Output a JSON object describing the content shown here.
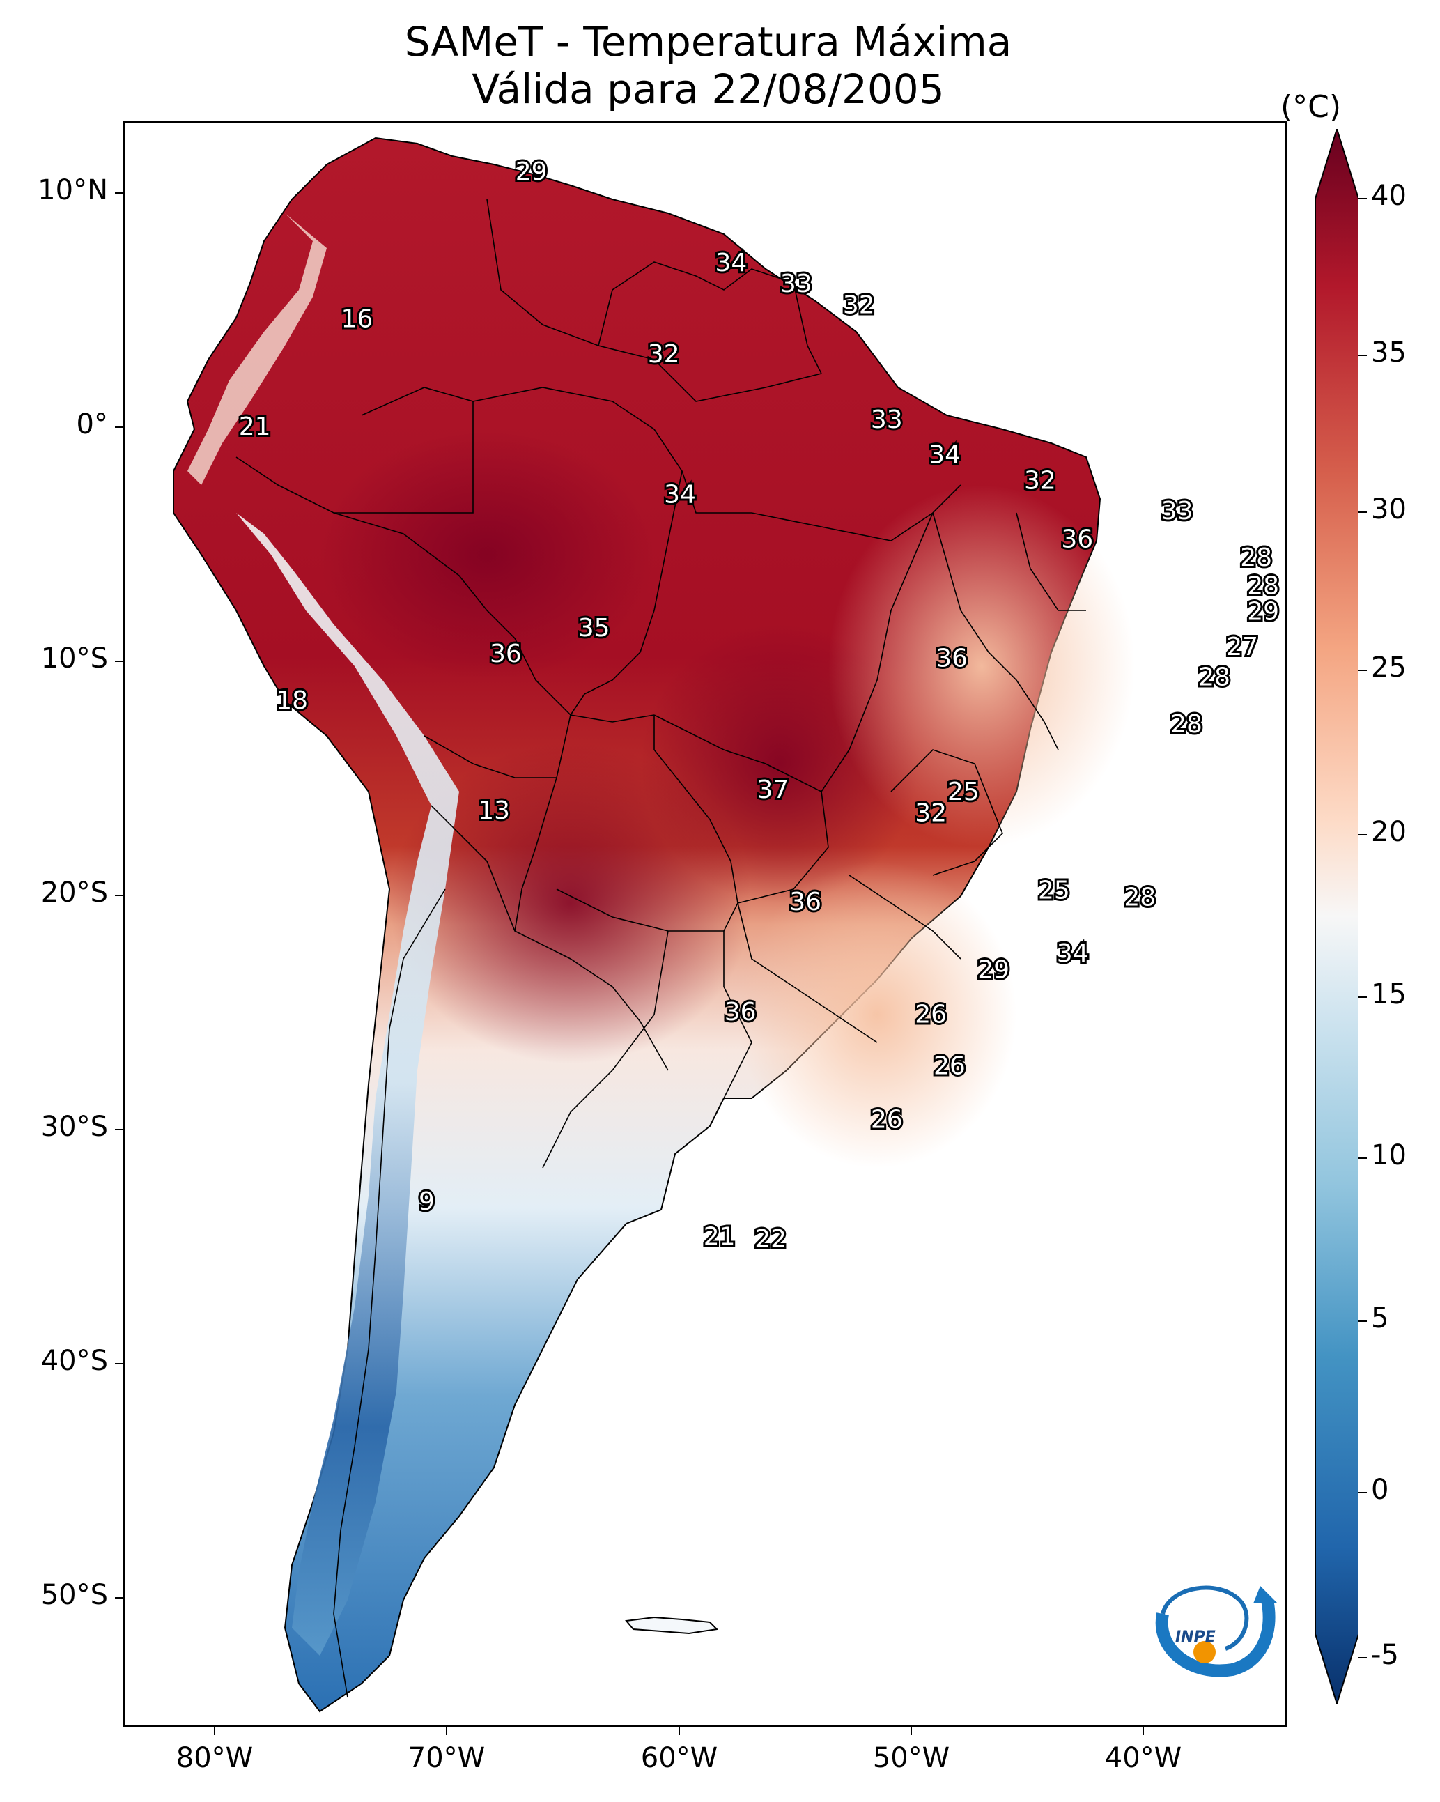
{
  "title": {
    "line1": "SAMeT - Temperatura Máxima",
    "line2": "Válida para 22/08/2005"
  },
  "colorbar": {
    "unit": "(°C)",
    "range": [
      -5,
      40
    ],
    "ticks": [
      "40",
      "35",
      "30",
      "25",
      "20",
      "15",
      "10",
      "5",
      "0",
      "-5"
    ],
    "colors": [
      "#08306b",
      "#2166ac",
      "#4393c3",
      "#92c5de",
      "#d1e5f0",
      "#f7f7f7",
      "#fddbc7",
      "#f4a582",
      "#d6604d",
      "#b2182b",
      "#67001f"
    ]
  },
  "axes": {
    "lat_labels": [
      "10°N",
      "0°",
      "10°S",
      "20°S",
      "30°S",
      "40°S",
      "50°S"
    ],
    "lon_labels": [
      "80°W",
      "70°W",
      "60°W",
      "50°W",
      "40°W"
    ]
  },
  "logo": {
    "text": "INPE"
  },
  "map_labels": [
    {
      "text": "29",
      "lon": -66.4,
      "lat": 10.6
    },
    {
      "text": "16",
      "lon": -73.9,
      "lat": 4.3
    },
    {
      "text": "21",
      "lon": -78.3,
      "lat": -0.3
    },
    {
      "text": "34",
      "lon": -57.8,
      "lat": 6.7
    },
    {
      "text": "33",
      "lon": -55.0,
      "lat": 5.8
    },
    {
      "text": "32",
      "lon": -52.3,
      "lat": 4.9
    },
    {
      "text": "32",
      "lon": -60.7,
      "lat": 2.8
    },
    {
      "text": "33",
      "lon": -51.1,
      "lat": 0.0
    },
    {
      "text": "34",
      "lon": -48.6,
      "lat": -1.5
    },
    {
      "text": "32",
      "lon": -44.5,
      "lat": -2.6
    },
    {
      "text": "34",
      "lon": -60.0,
      "lat": -3.2
    },
    {
      "text": "33",
      "lon": -38.6,
      "lat": -3.9
    },
    {
      "text": "36",
      "lon": -42.9,
      "lat": -5.1
    },
    {
      "text": "28",
      "lon": -35.2,
      "lat": -5.9
    },
    {
      "text": "28",
      "lon": -34.9,
      "lat": -7.1
    },
    {
      "text": "29",
      "lon": -34.9,
      "lat": -8.2
    },
    {
      "text": "35",
      "lon": -63.7,
      "lat": -8.9
    },
    {
      "text": "36",
      "lon": -67.5,
      "lat": -10.0
    },
    {
      "text": "36",
      "lon": -48.3,
      "lat": -10.2
    },
    {
      "text": "27",
      "lon": -35.8,
      "lat": -9.7
    },
    {
      "text": "28",
      "lon": -37.0,
      "lat": -11.0
    },
    {
      "text": "28",
      "lon": -38.2,
      "lat": -13.0
    },
    {
      "text": "18",
      "lon": -76.7,
      "lat": -12.0
    },
    {
      "text": "37",
      "lon": -56.0,
      "lat": -15.8
    },
    {
      "text": "25",
      "lon": -47.8,
      "lat": -15.9
    },
    {
      "text": "32",
      "lon": -49.2,
      "lat": -16.8
    },
    {
      "text": "13",
      "lon": -68.0,
      "lat": -16.7
    },
    {
      "text": "25",
      "lon": -43.9,
      "lat": -20.1
    },
    {
      "text": "28",
      "lon": -40.2,
      "lat": -20.4
    },
    {
      "text": "36",
      "lon": -54.6,
      "lat": -20.6
    },
    {
      "text": "34",
      "lon": -43.1,
      "lat": -22.8
    },
    {
      "text": "29",
      "lon": -46.5,
      "lat": -23.5
    },
    {
      "text": "36",
      "lon": -57.4,
      "lat": -25.3
    },
    {
      "text": "26",
      "lon": -49.2,
      "lat": -25.4
    },
    {
      "text": "26",
      "lon": -48.4,
      "lat": -27.6
    },
    {
      "text": "26",
      "lon": -51.1,
      "lat": -29.9
    },
    {
      "text": "9",
      "lon": -70.9,
      "lat": -33.4
    },
    {
      "text": "21",
      "lon": -58.3,
      "lat": -34.9
    },
    {
      "text": "22",
      "lon": -56.1,
      "lat": -35.0
    }
  ]
}
